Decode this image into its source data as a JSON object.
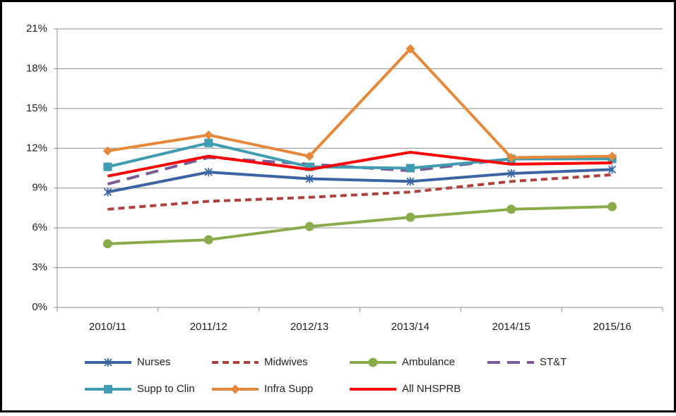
{
  "chart_data": {
    "type": "line",
    "categories": [
      "2010/11",
      "2011/12",
      "2012/13",
      "2013/14",
      "2014/15",
      "2015/16"
    ],
    "ylim": [
      0,
      21
    ],
    "yticks": [
      {
        "value": 0,
        "label": "0%"
      },
      {
        "value": 3,
        "label": "3%"
      },
      {
        "value": 6,
        "label": "6%"
      },
      {
        "value": 9,
        "label": "9%"
      },
      {
        "value": 12,
        "label": "12%"
      },
      {
        "value": 15,
        "label": "15%"
      },
      {
        "value": 18,
        "label": "18%"
      },
      {
        "value": 21,
        "label": "21%"
      }
    ],
    "grid": true,
    "legend": "bottom",
    "series": [
      {
        "name": "Nurses",
        "color": "#3b64a5",
        "marker": "asterisk",
        "style": "solid",
        "values": [
          8.7,
          10.2,
          9.7,
          9.5,
          10.1,
          10.4
        ]
      },
      {
        "name": "Midwives",
        "color": "#b0403c",
        "marker": "none",
        "style": "dashed",
        "values": [
          7.4,
          8.0,
          8.3,
          8.7,
          9.5,
          10.0
        ]
      },
      {
        "name": "Ambulance",
        "color": "#8aab4a",
        "marker": "circle",
        "style": "solid",
        "values": [
          4.8,
          5.1,
          6.1,
          6.8,
          7.4,
          7.6
        ]
      },
      {
        "name": "ST&T",
        "color": "#7a5c96",
        "marker": "none",
        "style": "long-dash",
        "values": [
          9.3,
          11.3,
          10.8,
          10.3,
          11.2,
          11.3
        ]
      },
      {
        "name": "Supp to Clin",
        "color": "#3f9cb1",
        "marker": "square",
        "style": "solid",
        "values": [
          10.6,
          12.4,
          10.6,
          10.5,
          11.2,
          11.2
        ]
      },
      {
        "name": "Infra Supp",
        "color": "#e5883a",
        "marker": "diamond",
        "style": "solid",
        "values": [
          11.8,
          13.0,
          11.4,
          19.5,
          11.3,
          11.4
        ]
      },
      {
        "name": "All NHSPRB",
        "color": "#ff0000",
        "marker": "none",
        "style": "solid",
        "values": [
          9.9,
          11.4,
          10.4,
          11.7,
          10.8,
          10.9
        ]
      }
    ]
  }
}
